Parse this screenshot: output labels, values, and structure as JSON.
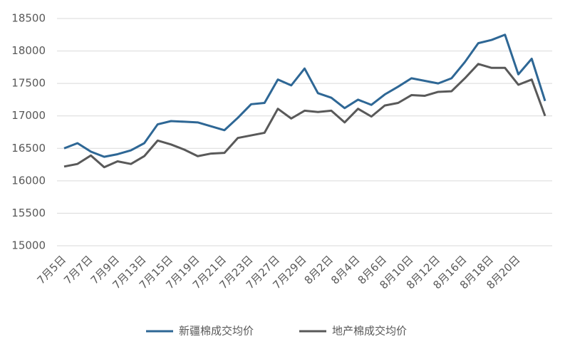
{
  "chart_data": {
    "type": "line",
    "categories": [
      "7月5日",
      null,
      "7月7日",
      null,
      "7月9日",
      null,
      "7月13日",
      null,
      "7月15日",
      null,
      "7月19日",
      null,
      "7月21日",
      null,
      "7月23日",
      null,
      "7月27日",
      null,
      "7月29日",
      null,
      "8月2日",
      null,
      "8月4日",
      null,
      "8月6日",
      null,
      "8月10日",
      null,
      "8月12日",
      null,
      "8月16日",
      null,
      "8月18日",
      null,
      "8月20日",
      null,
      null
    ],
    "series": [
      {
        "name": "新疆棉成交均价",
        "color": "#2e6795",
        "values": [
          16500,
          16580,
          16450,
          16370,
          16410,
          16470,
          16580,
          16870,
          16920,
          16910,
          16900,
          16840,
          16780,
          16970,
          17180,
          17200,
          17560,
          17470,
          17730,
          17350,
          17280,
          17120,
          17250,
          17170,
          17330,
          17450,
          17580,
          17540,
          17500,
          17580,
          17830,
          18120,
          18170,
          18250,
          17640,
          17880,
          17230
        ]
      },
      {
        "name": "地产棉成交均价",
        "color": "#595959",
        "values": [
          16220,
          16260,
          16390,
          16210,
          16300,
          16260,
          16380,
          16620,
          16560,
          16480,
          16380,
          16420,
          16430,
          16660,
          16700,
          16740,
          17110,
          16960,
          17080,
          17060,
          17080,
          16900,
          17110,
          16990,
          17160,
          17200,
          17320,
          17310,
          17370,
          17380,
          17580,
          17800,
          17740,
          17740,
          17480,
          17560,
          17000
        ]
      }
    ],
    "ylim": [
      15000,
      18500
    ],
    "yticks": [
      15000,
      15500,
      16000,
      16500,
      17000,
      17500,
      18000,
      18500
    ],
    "grid": true,
    "legend": "bottom"
  }
}
